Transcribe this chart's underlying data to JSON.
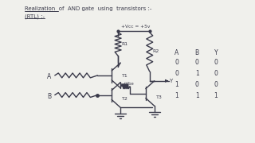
{
  "bg_color": "#f0f0ec",
  "ink_color": "#3a3a4a",
  "title_line1": "Realization  of  AND gate  using  transistors :-",
  "title_line2": "(RTL) :-",
  "vcc_label": "+Vcc = +5v",
  "r1_label": "R1",
  "r2_label": "R2",
  "t1_label": "T1",
  "t2_label": "T2",
  "t3_label": "T3",
  "a_label": "A",
  "b_label": "B",
  "y_label": "Y",
  "vbe_label": "+Vbe",
  "truth_headers": [
    "A",
    "B",
    "Y"
  ],
  "truth_rows": [
    [
      "0",
      "0",
      "0"
    ],
    [
      "0",
      "1",
      "0"
    ],
    [
      "1",
      "0",
      "0"
    ],
    [
      "1",
      "1",
      "1"
    ]
  ],
  "lw": 1.0
}
